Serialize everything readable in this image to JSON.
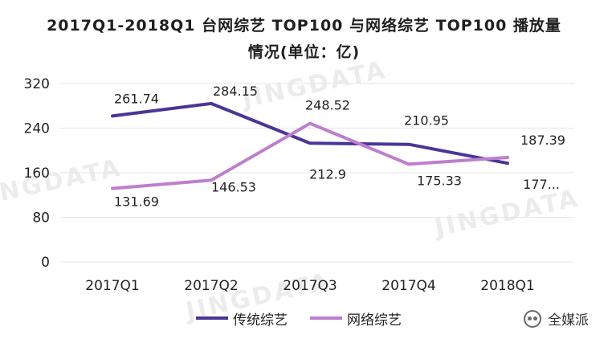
{
  "title_line1": "2017Q1-2018Q1 台网综艺 TOP100 与网络综艺 TOP100 播放量",
  "title_line2": "情况(单位：亿)",
  "watermark": "JINGDATA",
  "brand": "全媒派",
  "colors": {
    "tv": "#4b3596",
    "web": "#bd7fcd",
    "grid": "#e6e6e6"
  },
  "chart_data": {
    "type": "line",
    "categories": [
      "2017Q1",
      "2017Q2",
      "2017Q3",
      "2017Q4",
      "2018Q1"
    ],
    "ylim": [
      0,
      320
    ],
    "yticks": [
      0,
      80,
      160,
      240,
      320
    ],
    "grid": true,
    "legend_position": "bottom",
    "series": [
      {
        "name": "传统综艺",
        "values": [
          261.74,
          284.15,
          212.9,
          210.95,
          177
        ],
        "labels": [
          "261.74",
          "284.15",
          "212.9",
          "210.95",
          "177..."
        ]
      },
      {
        "name": "网络综艺",
        "values": [
          131.69,
          146.53,
          248.52,
          175.33,
          187.39
        ],
        "labels": [
          "131.69",
          "146.53",
          "248.52",
          "175.33",
          "187.39"
        ]
      }
    ]
  }
}
